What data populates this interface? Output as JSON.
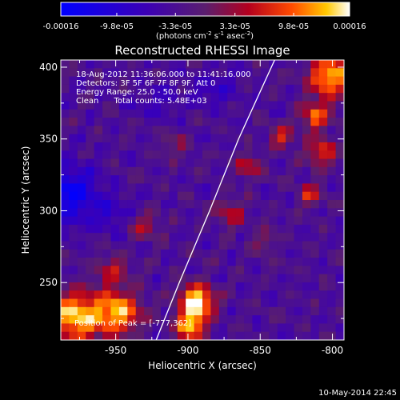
{
  "colorbar": {
    "tick_labels": [
      "-0.00016",
      "-9.8e-05",
      "-3.3e-05",
      "3.3e-05",
      "9.8e-05",
      "0.00016"
    ],
    "unit_label": "(photons cm",
    "unit_exp1": "-2",
    "unit_mid": " s",
    "unit_exp2": "-1",
    "unit_mid2": " asec",
    "unit_exp3": "-2",
    "unit_end": ")"
  },
  "chart_data": {
    "type": "heatmap",
    "title": "Reconstructed RHESSI Image",
    "xlabel": "Heliocentric X (arcsec)",
    "ylabel": "Heliocentric Y (arcsec)",
    "xlim": [
      -988,
      -792
    ],
    "ylim": [
      210,
      405
    ],
    "x_ticks": [
      -950,
      -900,
      -850,
      -800
    ],
    "y_ticks": [
      250,
      300,
      350,
      400
    ],
    "x_tick_labels": [
      "-950",
      "-900",
      "-850",
      "-800"
    ],
    "y_tick_labels": [
      "250",
      "300",
      "350",
      "400"
    ],
    "colorbar_range": [
      -0.00016,
      0.00016
    ],
    "annotations": [
      "18-Aug-2012 11:36:06.000 to 11:41:16.000",
      "Detectors: 3F 5F 6F 7F 8F 9F, Att 0",
      "Energy Range: 25.0 - 50.0 keV",
      "Clean      Total counts: 5.48E+03"
    ],
    "peak_label": "Position of Peak = [-777,362]",
    "peak_position": [
      -777,
      362
    ],
    "limb_curve_points": [
      [
        -922,
        210
      ],
      [
        -906,
        250
      ],
      [
        -885,
        300
      ],
      [
        -865,
        350
      ],
      [
        -840,
        405
      ]
    ]
  },
  "footer": {
    "timestamp": "10-May-2014 22:45"
  },
  "colors": {
    "low": "#0000ff",
    "mid": "#5a2e8a",
    "high": "#ffffff",
    "hot": "#ff3300"
  }
}
